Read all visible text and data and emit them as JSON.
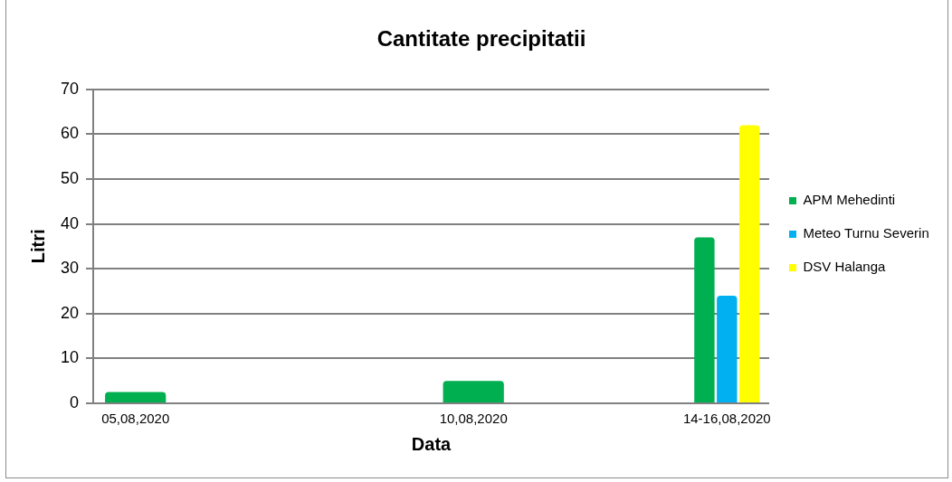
{
  "chart_data": {
    "type": "bar",
    "title": "Cantitate precipitatii",
    "xlabel": "Data",
    "ylabel": "Litri",
    "categories": [
      "05,08,2020",
      null,
      null,
      null,
      "10,08,2020",
      null,
      null,
      "14-16,08,2020"
    ],
    "series": [
      {
        "name": "APM Mehedinti",
        "color": "#00b050",
        "values": [
          2.5,
          null,
          null,
          null,
          5,
          null,
          null,
          37
        ]
      },
      {
        "name": "Meteo Turnu Severin",
        "color": "#00b0f0",
        "values": [
          null,
          null,
          null,
          null,
          null,
          null,
          null,
          24
        ]
      },
      {
        "name": "DSV Halanga",
        "color": "#ffff00",
        "values": [
          null,
          null,
          null,
          null,
          null,
          null,
          null,
          62
        ]
      }
    ],
    "ylim": [
      0,
      70
    ],
    "yticks": [
      0,
      10,
      20,
      30,
      40,
      50,
      60,
      70
    ],
    "grid": "y",
    "legend": "right"
  }
}
